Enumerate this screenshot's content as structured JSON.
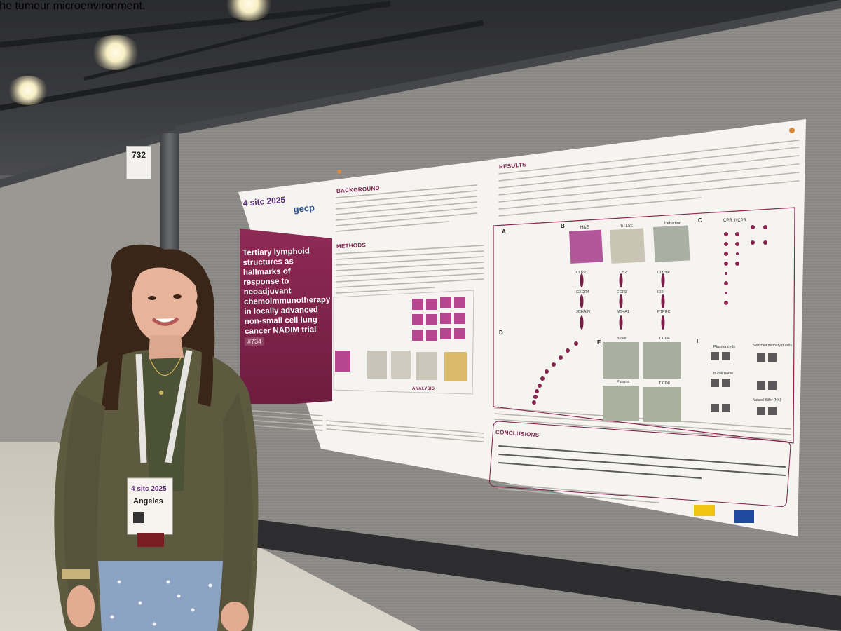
{
  "booth": {
    "number": "732"
  },
  "poster": {
    "title": "Tertiary lymphoid structures as hallmarks of response to neoadjuvant chemoimmunotherapy in locally advanced non-small cell lung cancer NADIM trial",
    "number": "#734",
    "logos": {
      "left": "4 sitc 2025",
      "right": "gecp"
    },
    "sections": {
      "background": "BACKGROUND",
      "methods": "METHODS",
      "results": "RESULTS",
      "conclusions": "CONCLUSIONS",
      "analysis": "ANALYSIS"
    },
    "panel_labels": [
      "A",
      "B",
      "C",
      "D",
      "E",
      "F"
    ],
    "figure_labels": {
      "he": "H&E",
      "mtls": "mTLSs",
      "induction": "Induction",
      "cd22": "CD22",
      "cd52": "CD52",
      "cd79a": "CD79A",
      "cxcr4": "CXCR4",
      "egr3": "EGR3",
      "id2": "ID2",
      "jchain": "JCHAIN",
      "ms4a1": "MS4A1",
      "ptprc": "PTPRC",
      "cpr": "CPR",
      "ncpr": "NCPR",
      "b_cell": "B cell",
      "t_cd4": "T CD4",
      "plasma": "Plasma",
      "t_cd8": "T CD8",
      "plasma_cells": "Plasma cells",
      "switched_memory": "Switched memory B cells",
      "b_cell_naive": "B cell naive",
      "natural_killer": "Natural Killer (NK)"
    },
    "conclusion_text": "NSCLC neoadjuvant ChIO antitumour response is primarily orchestrated through tertiary lymphoid structures, which serve as pivotal immunological hubs coordinating local adaptive immune responses through increased antigen presentation, humoral response and cytotoxicity within the tumour microenvironment."
  },
  "badge": {
    "event": "4 sitc 2025",
    "name": "Angeles"
  },
  "colors": {
    "poster_accent": "#7a1e48",
    "wall": "#8c8a86",
    "jacket": "#5e5a40"
  }
}
